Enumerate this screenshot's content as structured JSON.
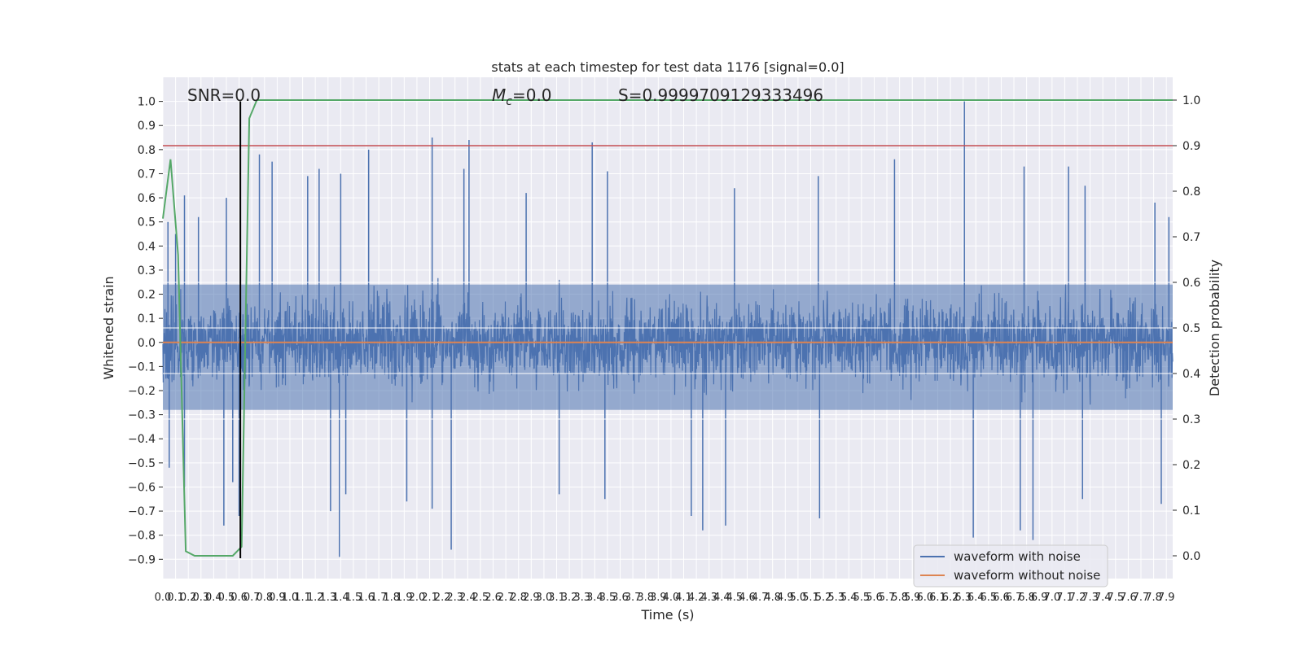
{
  "chart_data": {
    "type": "line",
    "title": "stats at each timestep for test data 1176 [signal=0.0]",
    "xlabel": "Time (s)",
    "ylabel": "Whitened strain",
    "y2label": "Detection probability",
    "xlim": [
      0.0,
      7.95
    ],
    "ylim": [
      -0.98,
      1.1
    ],
    "y2lim": [
      -0.05,
      1.05
    ],
    "xticks": [
      0.0,
      0.1,
      0.2,
      0.3,
      0.4,
      0.5,
      0.6,
      0.7,
      0.8,
      0.9,
      1.0,
      1.1,
      1.2,
      1.3,
      1.4,
      1.5,
      1.6,
      1.7,
      1.8,
      1.9,
      2.0,
      2.1,
      2.2,
      2.3,
      2.4,
      2.5,
      2.6,
      2.7,
      2.8,
      2.9,
      3.0,
      3.1,
      3.2,
      3.3,
      3.4,
      3.5,
      3.6,
      3.7,
      3.8,
      3.9,
      4.0,
      4.1,
      4.2,
      4.3,
      4.4,
      4.5,
      4.6,
      4.7,
      4.8,
      4.9,
      5.0,
      5.1,
      5.2,
      5.3,
      5.4,
      5.5,
      5.6,
      5.7,
      5.8,
      5.9,
      6.0,
      6.1,
      6.2,
      6.3,
      6.4,
      6.5,
      6.6,
      6.7,
      6.8,
      6.9,
      7.0,
      7.1,
      7.2,
      7.3,
      7.4,
      7.5,
      7.6,
      7.7,
      7.8,
      7.9
    ],
    "xtick_labels": [
      "0.0",
      "0.1",
      "0.2",
      "0.3",
      "0.4",
      "0.5",
      "0.6",
      "0.7",
      "0.8",
      "0.9",
      "1.0",
      "1.1",
      "1.2",
      "1.3",
      "1.4",
      "1.5",
      "1.6",
      "1.7",
      "1.8",
      "1.9",
      "2.0",
      "2.1",
      "2.2",
      "2.3",
      "2.4",
      "2.5",
      "2.6",
      "2.7",
      "2.8",
      "2.9",
      "3.0",
      "3.1",
      "3.2",
      "3.3",
      "3.4",
      "3.5",
      "3.6",
      "3.7",
      "3.8",
      "3.9",
      "4.0",
      "4.1",
      "4.2",
      "4.3",
      "4.4",
      "4.5",
      "4.6",
      "4.7",
      "4.8",
      "4.9",
      "5.0",
      "5.1",
      "5.2",
      "5.3",
      "5.4",
      "5.5",
      "5.6",
      "5.7",
      "5.8",
      "5.9",
      "6.0",
      "6.1",
      "6.2",
      "6.3",
      "6.4",
      "6.5",
      "6.6",
      "6.7",
      "6.8",
      "6.9",
      "7.0",
      "7.1",
      "7.2",
      "7.3",
      "7.4",
      "7.5",
      "7.6",
      "7.7",
      "7.8",
      "7.9"
    ],
    "yticks": [
      -0.9,
      -0.8,
      -0.7,
      -0.6,
      -0.5,
      -0.4,
      -0.3,
      -0.2,
      -0.1,
      0.0,
      0.1,
      0.2,
      0.3,
      0.4,
      0.5,
      0.6,
      0.7,
      0.8,
      0.9,
      1.0
    ],
    "ytick_labels": [
      "−0.9",
      "−0.8",
      "−0.7",
      "−0.6",
      "−0.5",
      "−0.4",
      "−0.3",
      "−0.2",
      "−0.1",
      "0.0",
      "0.1",
      "0.2",
      "0.3",
      "0.4",
      "0.5",
      "0.6",
      "0.7",
      "0.8",
      "0.9",
      "1.0"
    ],
    "y2ticks": [
      0.0,
      0.1,
      0.2,
      0.3,
      0.4,
      0.5,
      0.6,
      0.7,
      0.8,
      0.9,
      1.0
    ],
    "y2tick_labels": [
      "0.0",
      "0.1",
      "0.2",
      "0.3",
      "0.4",
      "0.5",
      "0.6",
      "0.7",
      "0.8",
      "0.9",
      "1.0"
    ],
    "grid": true,
    "legend_position": "bottom-right",
    "annotations": {
      "snr": "SNR=0.0",
      "mc": "M",
      "mc_sub": "c",
      "mc_value": "=0.0",
      "s": "S=0.9999709129333496"
    },
    "series": [
      {
        "name": "waveform with noise",
        "color": "#4c72b0",
        "envelope": "dense whitened noise, amplitude approx ±0.4 with spikes",
        "spike_peaks": [
          [
            0.04,
            0.5
          ],
          [
            0.1,
            0.45
          ],
          [
            0.17,
            0.61
          ],
          [
            0.28,
            0.52
          ],
          [
            0.5,
            0.6
          ],
          [
            0.76,
            0.78
          ],
          [
            0.86,
            0.75
          ],
          [
            1.14,
            0.69
          ],
          [
            1.23,
            0.72
          ],
          [
            1.4,
            0.7
          ],
          [
            1.62,
            0.8
          ],
          [
            2.12,
            0.85
          ],
          [
            2.41,
            0.84
          ],
          [
            2.37,
            0.72
          ],
          [
            2.86,
            0.62
          ],
          [
            3.38,
            0.83
          ],
          [
            3.5,
            0.71
          ],
          [
            4.5,
            0.64
          ],
          [
            5.16,
            0.69
          ],
          [
            5.76,
            0.76
          ],
          [
            6.31,
            1.0
          ],
          [
            6.78,
            0.73
          ],
          [
            7.13,
            0.73
          ],
          [
            7.26,
            0.65
          ],
          [
            7.81,
            0.58
          ],
          [
            7.92,
            0.52
          ]
        ],
        "spike_troughs": [
          [
            0.05,
            -0.52
          ],
          [
            0.17,
            -0.6
          ],
          [
            0.48,
            -0.76
          ],
          [
            0.55,
            -0.58
          ],
          [
            0.6,
            -0.72
          ],
          [
            1.32,
            -0.7
          ],
          [
            1.39,
            -0.89
          ],
          [
            1.44,
            -0.63
          ],
          [
            1.92,
            -0.66
          ],
          [
            2.12,
            -0.69
          ],
          [
            2.27,
            -0.86
          ],
          [
            3.12,
            -0.63
          ],
          [
            3.48,
            -0.65
          ],
          [
            4.16,
            -0.72
          ],
          [
            4.25,
            -0.78
          ],
          [
            4.43,
            -0.76
          ],
          [
            5.17,
            -0.73
          ],
          [
            6.38,
            -0.81
          ],
          [
            6.75,
            -0.78
          ],
          [
            6.85,
            -0.82
          ],
          [
            7.24,
            -0.65
          ],
          [
            7.86,
            -0.67
          ]
        ]
      },
      {
        "name": "waveform without noise",
        "color": "#dd8452",
        "x": [
          0.0,
          7.95
        ],
        "y": [
          0.0,
          0.0
        ]
      },
      {
        "name": "detection probability",
        "color": "#55a868",
        "axis": "y2",
        "x": [
          0.0,
          0.06,
          0.12,
          0.18,
          0.25,
          0.4,
          0.55,
          0.62,
          0.68,
          0.74,
          7.95
        ],
        "y": [
          0.74,
          0.87,
          0.66,
          0.01,
          0.0,
          0.0,
          0.0,
          0.02,
          0.96,
          1.0,
          1.0
        ]
      }
    ],
    "threshold": {
      "axis": "y2",
      "value": 0.9,
      "color": "#c44e52"
    },
    "marker": {
      "x": 0.61,
      "color": "#000000"
    }
  }
}
